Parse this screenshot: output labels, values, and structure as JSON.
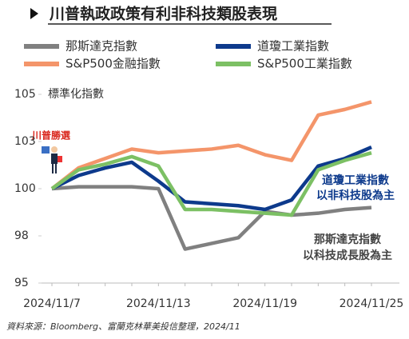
{
  "chart_data": {
    "type": "line",
    "title": "川普執政政策有利非科技類股表現",
    "y_label": "標準化指數",
    "annotations": [
      "川普勝選",
      "道瓊工業指數",
      "以非科技股為主",
      "那斯達克指數",
      "以科技成長股為主"
    ],
    "source": "資料來源：Bloomberg、富蘭克林華美投信整理，2024/11",
    "categories": [
      "2024/11/7",
      null,
      null,
      null,
      "2024/11/13",
      null,
      null,
      null,
      "2024/11/19",
      null,
      null,
      null,
      "2024/11/25"
    ],
    "series": [
      {
        "name": "那斯達克指數",
        "color": "#808080",
        "values": [
          100,
          100.1,
          100.1,
          100.1,
          100.0,
          96.8,
          97.1,
          97.4,
          98.8,
          98.6,
          98.7,
          98.9,
          99.0
        ]
      },
      {
        "name": "道瓊工業指數",
        "color": "#0d3a8c",
        "values": [
          100,
          100.7,
          101.1,
          101.4,
          100.4,
          99.3,
          99.2,
          99.1,
          98.9,
          99.4,
          101.2,
          101.6,
          102.2
        ]
      },
      {
        "name": "S&P500金融指數",
        "color": "#f4956a",
        "values": [
          100,
          101.1,
          101.6,
          102.1,
          101.9,
          102.0,
          102.1,
          102.3,
          101.8,
          101.5,
          103.9,
          104.2,
          104.6
        ]
      },
      {
        "name": "S&P500工業指數",
        "color": "#7cc064",
        "values": [
          100,
          101.0,
          101.3,
          101.7,
          101.2,
          98.9,
          98.9,
          98.8,
          98.7,
          98.6,
          101.0,
          101.5,
          101.9
        ]
      }
    ],
    "ylim": [
      95,
      105
    ],
    "yticks": [
      95,
      {
        "value": 97.5,
        "label": "98"
      },
      100,
      {
        "value": 102.5,
        "label": "103"
      },
      105
    ]
  }
}
